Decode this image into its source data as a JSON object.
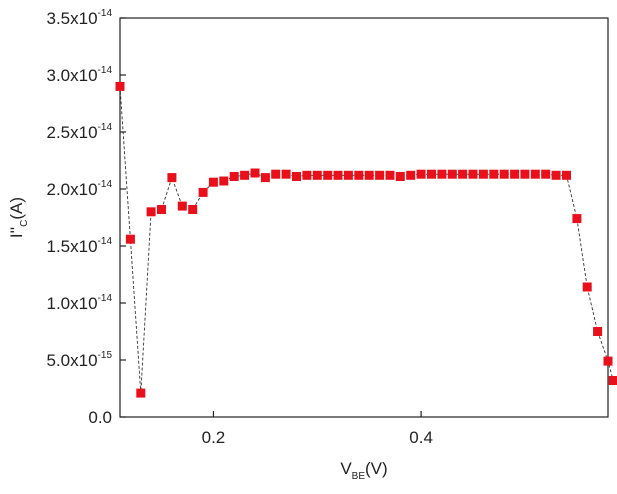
{
  "chart_data": {
    "type": "scatter",
    "title": "",
    "xlabel": {
      "main": "V",
      "sub": "BE",
      "suffix": "(V)"
    },
    "ylabel": {
      "main": "I''",
      "sub": "C",
      "suffix": "(A)"
    },
    "xlim": [
      0.11,
      0.58
    ],
    "ylim": [
      0,
      3.5e-14
    ],
    "x_ticks": [
      {
        "value": 0.2,
        "label": "0.2"
      },
      {
        "value": 0.4,
        "label": "0.4"
      }
    ],
    "y_ticks": [
      {
        "value": 0,
        "mant": "0.0",
        "exp": ""
      },
      {
        "value": 5e-15,
        "mant": "5.0x10",
        "exp": "-15"
      },
      {
        "value": 1e-14,
        "mant": "1.0x10",
        "exp": "-14"
      },
      {
        "value": 1.5e-14,
        "mant": "1.5x10",
        "exp": "-14"
      },
      {
        "value": 2e-14,
        "mant": "2.0x10",
        "exp": "-14"
      },
      {
        "value": 2.5e-14,
        "mant": "2.5x10",
        "exp": "-14"
      },
      {
        "value": 3e-14,
        "mant": "3.0x10",
        "exp": "-14"
      },
      {
        "value": 3.5e-14,
        "mant": "3.5x10",
        "exp": "-14"
      }
    ],
    "grid": false,
    "series": [
      {
        "marker": "square",
        "color": "#e8101a",
        "line_color": "#333333",
        "line_style": "dashed",
        "x": [
          0.11,
          0.12,
          0.13,
          0.14,
          0.15,
          0.16,
          0.17,
          0.18,
          0.19,
          0.2,
          0.21,
          0.22,
          0.23,
          0.24,
          0.25,
          0.26,
          0.27,
          0.28,
          0.29,
          0.3,
          0.31,
          0.32,
          0.33,
          0.34,
          0.35,
          0.36,
          0.37,
          0.38,
          0.39,
          0.4,
          0.41,
          0.42,
          0.43,
          0.44,
          0.45,
          0.46,
          0.47,
          0.48,
          0.49,
          0.5,
          0.51,
          0.52,
          0.53,
          0.54,
          0.55,
          0.56,
          0.57,
          0.58
        ],
        "y": [
          2.9e-14,
          1.56e-14,
          2.1e-15,
          1.8e-14,
          1.82e-14,
          2.1e-14,
          1.85e-14,
          1.82e-14,
          1.97e-14,
          2.06e-14,
          2.07e-14,
          2.11e-14,
          2.12e-14,
          2.14e-14,
          2.1e-14,
          2.13e-14,
          2.13e-14,
          2.11e-14,
          2.12e-14,
          2.12e-14,
          2.12e-14,
          2.12e-14,
          2.12e-14,
          2.12e-14,
          2.12e-14,
          2.12e-14,
          2.12e-14,
          2.11e-14,
          2.12e-14,
          2.13e-14,
          2.13e-14,
          2.13e-14,
          2.13e-14,
          2.13e-14,
          2.13e-14,
          2.13e-14,
          2.13e-14,
          2.13e-14,
          2.13e-14,
          2.13e-14,
          2.13e-14,
          2.13e-14,
          2.12e-14,
          2.12e-14,
          1.74e-14,
          1.14e-14,
          7.5e-15,
          4.9e-15
        ]
      }
    ]
  },
  "chart_data_tail": {
    "x": [
      0.585
    ],
    "y": [
      3.2e-15
    ]
  }
}
